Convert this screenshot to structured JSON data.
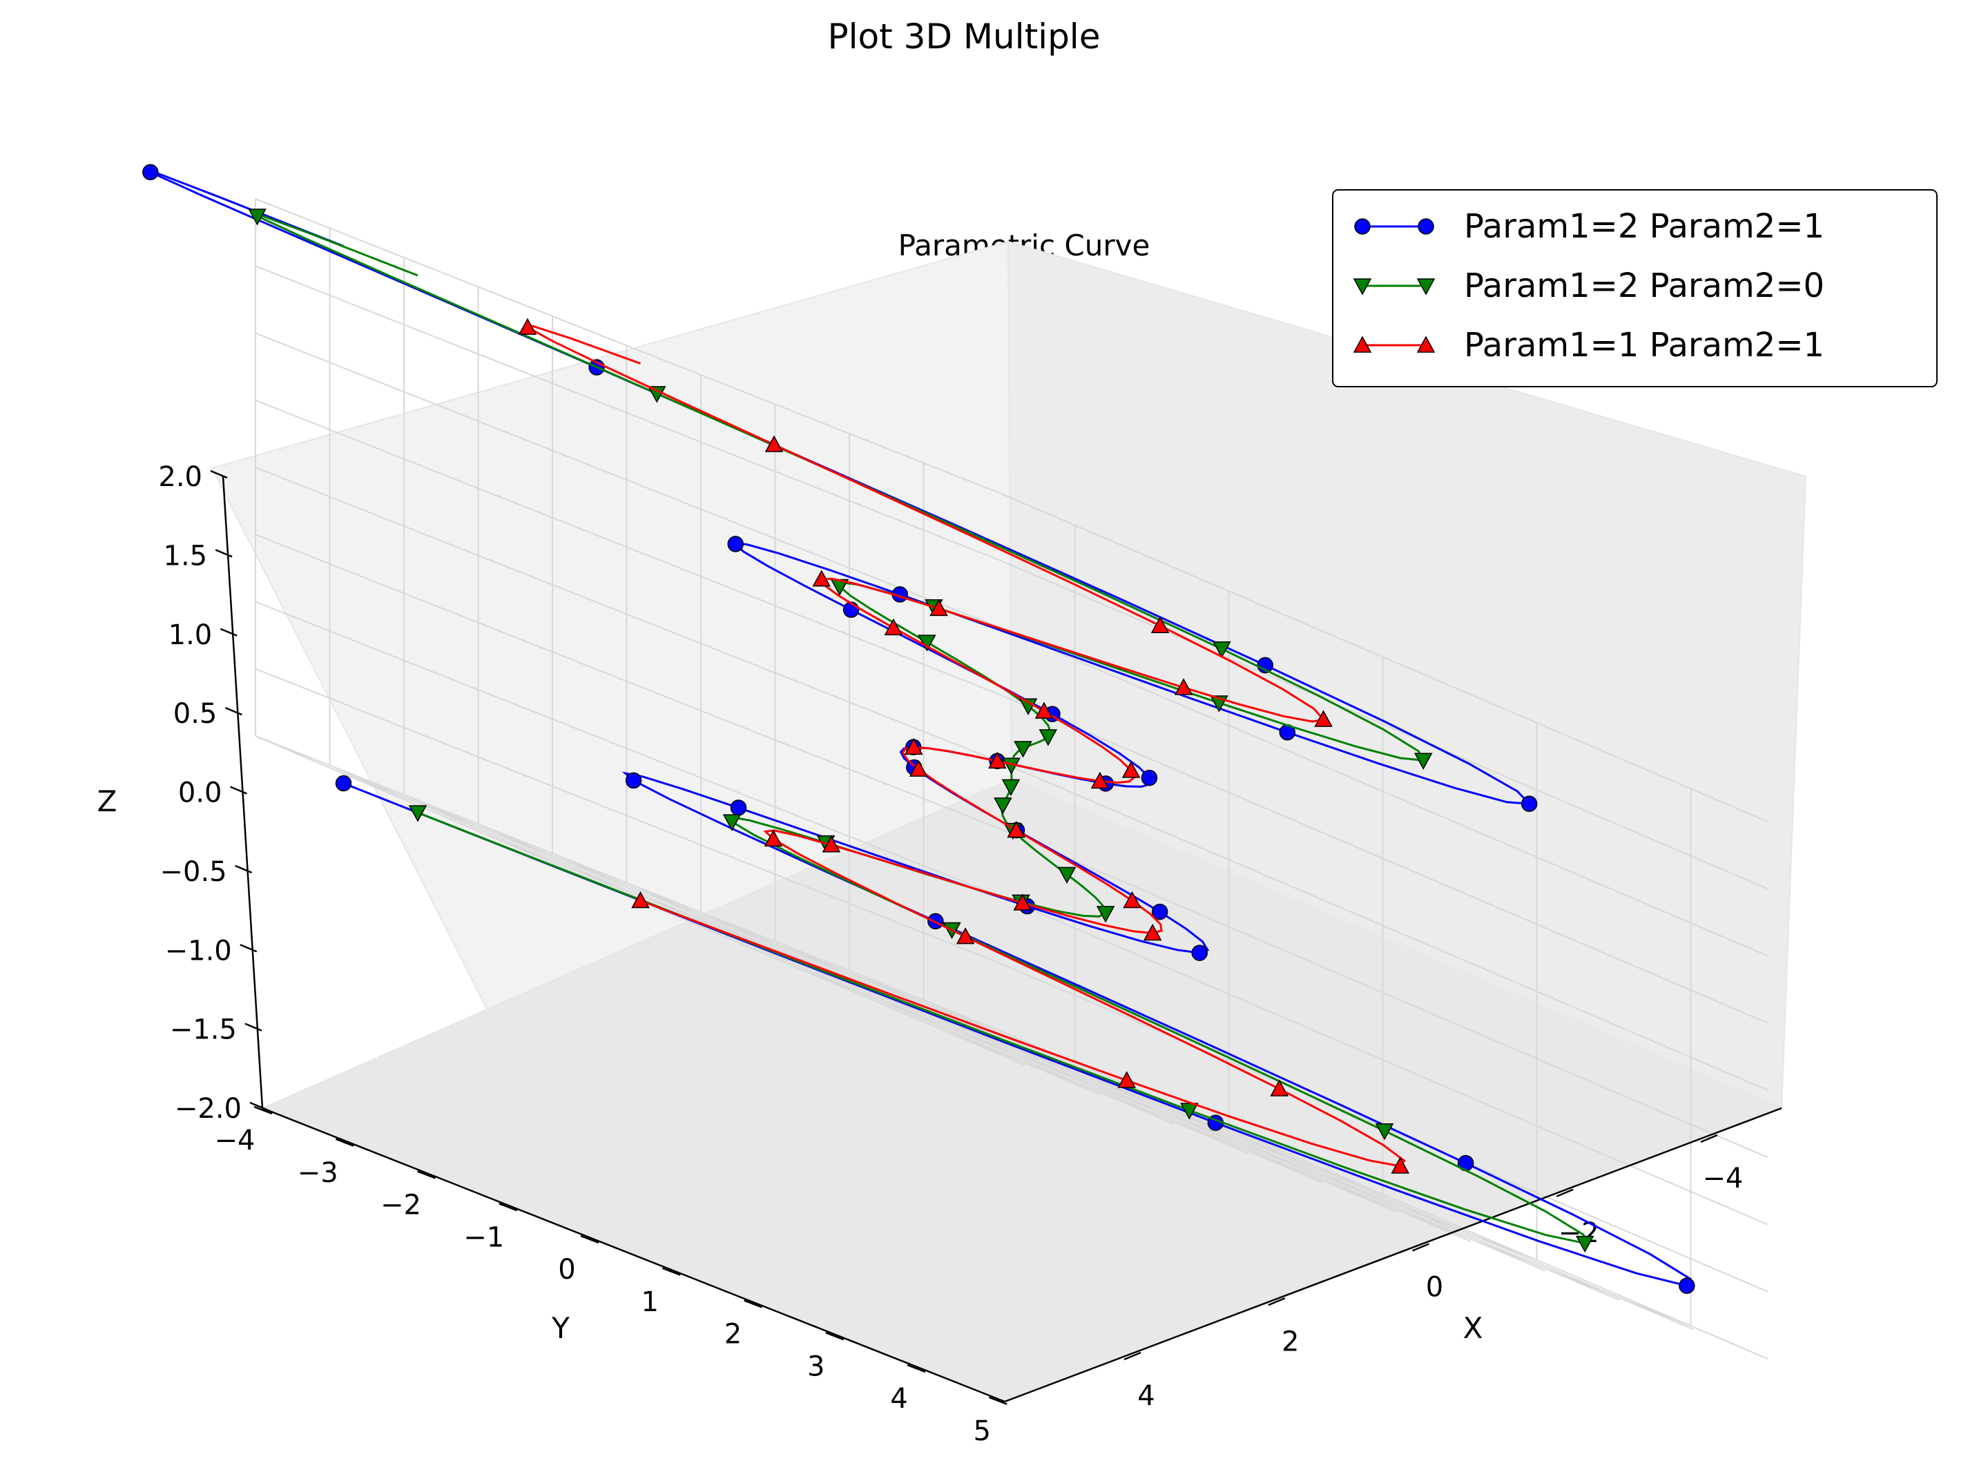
{
  "figure_title": "Plot 3D Multiple",
  "chart_data": {
    "type": "line",
    "projection": "3d",
    "title": "Parametric Curve",
    "xlabel": "X",
    "ylabel": "Y",
    "zlabel": "Z",
    "xlim": [
      -5,
      5
    ],
    "ylim": [
      -4,
      5
    ],
    "zlim": [
      -2,
      2
    ],
    "x_ticks": [
      "−4",
      "−2",
      "0",
      "2",
      "4"
    ],
    "y_ticks": [
      "−4",
      "−3",
      "−2",
      "−1",
      "0",
      "1",
      "2",
      "3",
      "4",
      "5"
    ],
    "z_ticks": [
      "−2.0",
      "−1.5",
      "−1.0",
      "−0.5",
      "0.0",
      "0.5",
      "1.0",
      "1.5",
      "2.0"
    ],
    "grid": true,
    "legend_position": "top-right",
    "series": [
      {
        "name": "Param1=2 Param2=1",
        "color": "#0000ff",
        "marker": "circle",
        "param1": 2,
        "param2": 1
      },
      {
        "name": "Param1=2 Param2=0",
        "color": "#008000",
        "marker": "triangle-down",
        "param1": 2,
        "param2": 0
      },
      {
        "name": "Param1=1 Param2=1",
        "color": "#ff0000",
        "marker": "triangle-up",
        "param1": 1,
        "param2": 1
      }
    ]
  }
}
